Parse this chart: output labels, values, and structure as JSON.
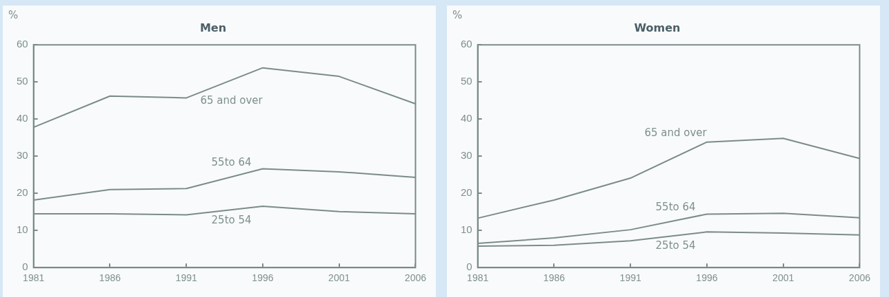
{
  "chart_data": [
    {
      "type": "line",
      "title": "Men",
      "ylabel": "%",
      "categories": [
        "1981",
        "1986",
        "1991",
        "1996",
        "2001",
        "2006"
      ],
      "ylim": [
        0,
        60
      ],
      "yticks": [
        0,
        10,
        20,
        30,
        40,
        50,
        60
      ],
      "legend": false,
      "marker": "none",
      "series": [
        {
          "name": "65 and over",
          "color": "#7b8b86",
          "values": [
            37.8,
            46.2,
            45.7,
            53.8,
            51.5,
            44.1
          ]
        },
        {
          "name": "55to 64",
          "color": "#7b8b86",
          "values": [
            18.2,
            21,
            21.3,
            26.6,
            25.8,
            24.3
          ]
        },
        {
          "name": "25to 54",
          "color": "#7b8b86",
          "values": [
            14.5,
            14.5,
            14.2,
            16.5,
            15.1,
            14.5
          ]
        }
      ]
    },
    {
      "type": "line",
      "title": "Women",
      "ylabel": "%",
      "categories": [
        "1981",
        "1986",
        "1991",
        "1996",
        "2001",
        "2006"
      ],
      "ylim": [
        0,
        60
      ],
      "yticks": [
        0,
        10,
        20,
        30,
        40,
        50,
        60
      ],
      "legend": false,
      "marker": "none",
      "series": [
        {
          "name": "65 and over",
          "color": "#7b8b86",
          "values": [
            13.3,
            18.2,
            24.1,
            33.8,
            34.8,
            29.4
          ]
        },
        {
          "name": "55to 64",
          "color": "#7b8b86",
          "values": [
            6.5,
            8,
            10.2,
            14.4,
            14.6,
            13.4
          ]
        },
        {
          "name": "25to 54",
          "color": "#7b8b86",
          "values": [
            5.8,
            6,
            7.2,
            9.6,
            9.3,
            8.8
          ]
        }
      ]
    }
  ]
}
